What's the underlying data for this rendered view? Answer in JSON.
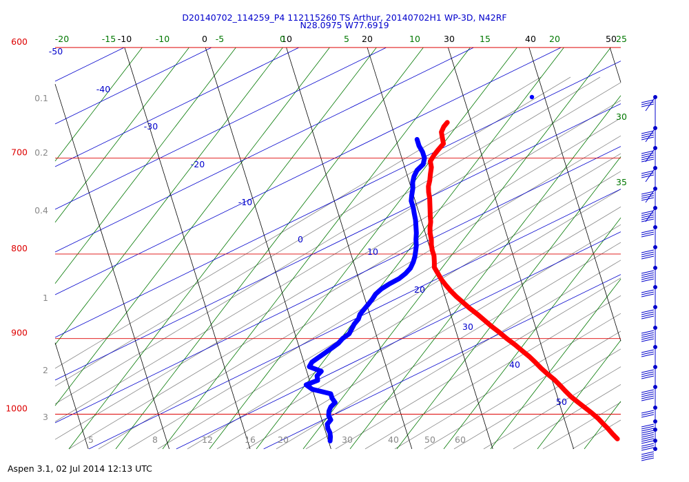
{
  "title_line1": "D20140702_114259_P4 112115260 TS Arthur, 20140702H1 WP-3D, N42RF",
  "title_line2": "N28.0975 W77.6919",
  "footer": "Aspen 3.1, 02 Jul 2014  12:13 UTC",
  "colors": {
    "isobar": "#dd0000",
    "isotherm": "#000000",
    "dry_adiabat": "#0000cc",
    "moist_adiabat": "#007700",
    "mixing_ratio": "#888888",
    "temperature_trace": "#ff0000",
    "dewpoint_trace": "#0000ff",
    "wind_barb": "#0000cc"
  },
  "chart_data": {
    "type": "line",
    "title": "D20140702_114259_P4 112115260 TS Arthur, 20140702H1 WP-3D, N42RF",
    "subtitle": "N28.0975 W77.6919",
    "ylim": [
      600,
      1050
    ],
    "y_scale": "log",
    "isobar_labels": [
      {
        "p": 600,
        "label": "600"
      },
      {
        "p": 700,
        "label": "700"
      },
      {
        "p": 800,
        "label": "800"
      },
      {
        "p": 900,
        "label": "900"
      },
      {
        "p": 1000,
        "label": "1000"
      }
    ],
    "isotherm_labels": [
      "-10",
      "0",
      "10",
      "20",
      "30",
      "40",
      "50"
    ],
    "theta_e_top_labels": [
      "-20",
      "-15",
      "-10",
      "-5",
      "0",
      "5",
      "10",
      "15",
      "20",
      "25"
    ],
    "theta_e_right_labels": [
      "30",
      "35"
    ],
    "dry_adiabat_labels": [
      "-50",
      "-40",
      "-30",
      "-20",
      "-10",
      "0",
      "10",
      "20",
      "30",
      "40",
      "50"
    ],
    "mixing_ratio_left_labels": [
      "0.1",
      "0.2",
      "0.4",
      "1",
      "2",
      "3"
    ],
    "mixing_ratio_bottom_labels": [
      "5",
      "8",
      "12",
      "16",
      "20",
      "30",
      "40",
      "50",
      "60"
    ],
    "series": [
      {
        "role": "temperature",
        "points": [
          [
            666,
            17.0
          ],
          [
            670,
            16.4
          ],
          [
            675,
            15.9
          ],
          [
            680,
            15.8
          ],
          [
            686,
            15.7
          ],
          [
            692,
            14.8
          ],
          [
            697,
            14.1
          ],
          [
            703,
            13.4
          ],
          [
            709,
            13.3
          ],
          [
            716,
            12.9
          ],
          [
            722,
            12.6
          ],
          [
            728,
            12.2
          ],
          [
            734,
            12.0
          ],
          [
            740,
            11.9
          ],
          [
            746,
            11.7
          ],
          [
            752,
            11.5
          ],
          [
            758,
            11.3
          ],
          [
            765,
            11.1
          ],
          [
            771,
            10.8
          ],
          [
            777,
            10.6
          ],
          [
            784,
            10.5
          ],
          [
            790,
            10.3
          ],
          [
            796,
            10.2
          ],
          [
            802,
            10.2
          ],
          [
            809,
            10.0
          ],
          [
            815,
            9.8
          ],
          [
            822,
            10.0
          ],
          [
            829,
            10.2
          ],
          [
            835,
            10.5
          ],
          [
            842,
            10.9
          ],
          [
            849,
            11.4
          ],
          [
            856,
            12.0
          ],
          [
            863,
            12.6
          ],
          [
            870,
            13.3
          ],
          [
            878,
            14.0
          ],
          [
            885,
            14.6
          ],
          [
            892,
            15.3
          ],
          [
            900,
            16.0
          ],
          [
            908,
            16.8
          ],
          [
            915,
            17.4
          ],
          [
            923,
            18.1
          ],
          [
            930,
            18.6
          ],
          [
            938,
            19.1
          ],
          [
            946,
            19.7
          ],
          [
            953,
            20.3
          ],
          [
            961,
            20.8
          ],
          [
            968,
            21.2
          ],
          [
            976,
            21.7
          ],
          [
            983,
            22.3
          ],
          [
            991,
            23.0
          ],
          [
            998,
            23.6
          ],
          [
            1006,
            24.2
          ],
          [
            1013,
            24.6
          ],
          [
            1020,
            25.0
          ],
          [
            1028,
            25.4
          ],
          [
            1035,
            25.8
          ]
        ]
      },
      {
        "role": "dewpoint",
        "points": [
          [
            682,
            12.6
          ],
          [
            688,
            12.6
          ],
          [
            694,
            12.8
          ],
          [
            700,
            12.8
          ],
          [
            706,
            12.4
          ],
          [
            712,
            11.4
          ],
          [
            718,
            10.8
          ],
          [
            724,
            10.4
          ],
          [
            730,
            10.2
          ],
          [
            737,
            9.8
          ],
          [
            743,
            9.5
          ],
          [
            750,
            9.5
          ],
          [
            756,
            9.4
          ],
          [
            763,
            9.3
          ],
          [
            770,
            9.1
          ],
          [
            777,
            8.9
          ],
          [
            784,
            8.6
          ],
          [
            791,
            8.4
          ],
          [
            797,
            8.1
          ],
          [
            803,
            7.8
          ],
          [
            809,
            7.4
          ],
          [
            816,
            6.8
          ],
          [
            822,
            6.0
          ],
          [
            828,
            5.0
          ],
          [
            834,
            3.6
          ],
          [
            840,
            2.4
          ],
          [
            846,
            1.5
          ],
          [
            852,
            0.9
          ],
          [
            858,
            0.2
          ],
          [
            864,
            -0.5
          ],
          [
            870,
            -1.2
          ],
          [
            876,
            -1.6
          ],
          [
            882,
            -2.3
          ],
          [
            888,
            -2.8
          ],
          [
            894,
            -3.3
          ],
          [
            900,
            -4.3
          ],
          [
            906,
            -5.0
          ],
          [
            912,
            -6.0
          ],
          [
            918,
            -7.0
          ],
          [
            924,
            -8.0
          ],
          [
            930,
            -9.0
          ],
          [
            936,
            -9.5
          ],
          [
            942,
            -8.2
          ],
          [
            948,
            -8.9
          ],
          [
            954,
            -9.0
          ],
          [
            960,
            -10.6
          ],
          [
            966,
            -10.0
          ],
          [
            972,
            -7.9
          ],
          [
            978,
            -7.9
          ],
          [
            984,
            -7.7
          ],
          [
            990,
            -8.4
          ],
          [
            996,
            -8.8
          ],
          [
            1002,
            -9.0
          ],
          [
            1008,
            -8.9
          ],
          [
            1014,
            -9.5
          ],
          [
            1020,
            -9.6
          ],
          [
            1026,
            -9.5
          ],
          [
            1032,
            -9.6
          ],
          [
            1038,
            -9.8
          ]
        ]
      }
    ],
    "wind_barb_pressures": [
      650,
      672,
      687,
      703,
      720,
      737,
      754,
      772,
      792,
      812,
      834,
      857,
      880,
      904,
      929,
      955,
      982,
      1010,
      1038,
      1060
    ]
  }
}
